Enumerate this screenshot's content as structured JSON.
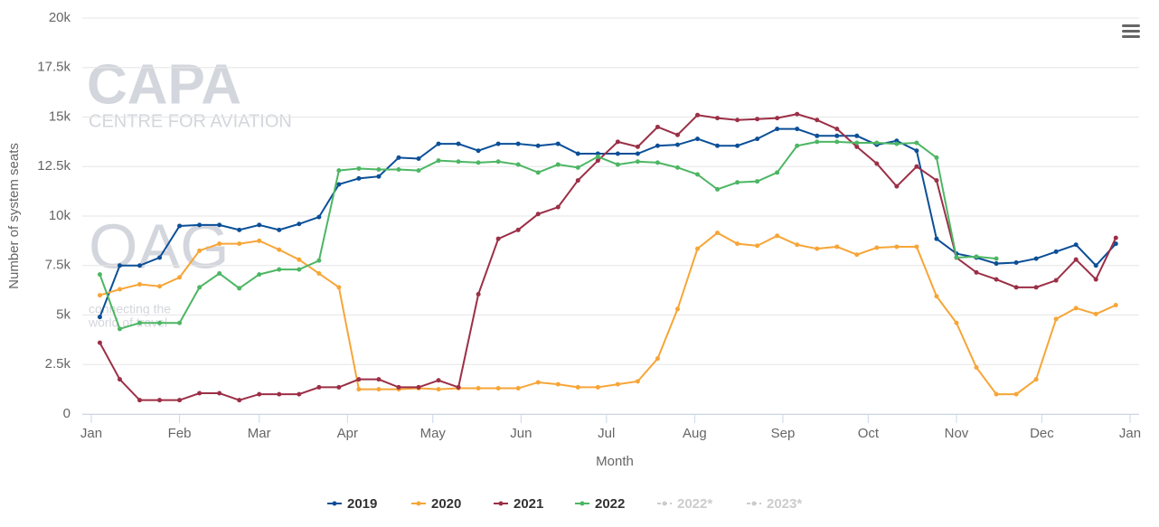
{
  "chart_data": {
    "type": "line",
    "x_label": "Month",
    "y_label": "Number of system seats",
    "watermarks": [
      "CAPA",
      "CENTRE FOR AVIATION",
      "OAG",
      "connecting the",
      "world of travel"
    ],
    "xlim": [
      0,
      365
    ],
    "xticks": [
      {
        "value": 0,
        "label": "Jan"
      },
      {
        "value": 31,
        "label": "Feb"
      },
      {
        "value": 59,
        "label": "Mar"
      },
      {
        "value": 90,
        "label": "Apr"
      },
      {
        "value": 120,
        "label": "May"
      },
      {
        "value": 151,
        "label": "Jun"
      },
      {
        "value": 181,
        "label": "Jul"
      },
      {
        "value": 212,
        "label": "Aug"
      },
      {
        "value": 243,
        "label": "Sep"
      },
      {
        "value": 273,
        "label": "Oct"
      },
      {
        "value": 304,
        "label": "Nov"
      },
      {
        "value": 334,
        "label": "Dec"
      },
      {
        "value": 365,
        "label": "Jan"
      }
    ],
    "ylim": [
      0,
      20000
    ],
    "yticks": [
      0,
      {
        "value": 2500,
        "label": "2.5k"
      },
      {
        "value": 5000,
        "label": "5k"
      },
      {
        "value": 7500,
        "label": "7.5k"
      },
      {
        "value": 10000,
        "label": "10k"
      },
      {
        "value": 12500,
        "label": "12.5k"
      },
      {
        "value": 15000,
        "label": "15k"
      },
      {
        "value": 17500,
        "label": "17.5k"
      },
      {
        "value": 20000,
        "label": "20k"
      }
    ],
    "grid": true,
    "x": [
      3,
      10,
      17,
      24,
      31,
      38,
      45,
      52,
      59,
      66,
      73,
      80,
      87,
      94,
      101,
      108,
      115,
      122,
      129,
      136,
      143,
      150,
      157,
      164,
      171,
      178,
      185,
      192,
      199,
      206,
      213,
      220,
      227,
      234,
      241,
      248,
      255,
      262,
      269,
      276,
      283,
      290,
      297,
      304,
      311,
      318,
      325,
      332,
      339,
      346,
      353,
      360
    ],
    "series": [
      {
        "name": "2019",
        "color": "#0b4f97",
        "values": [
          4900,
          7500,
          7500,
          7900,
          9500,
          9550,
          9550,
          9300,
          9550,
          9300,
          9600,
          9950,
          11600,
          11900,
          12000,
          12950,
          12900,
          13650,
          13650,
          13300,
          13650,
          13650,
          13550,
          13650,
          13150,
          13150,
          13150,
          13150,
          13550,
          13600,
          13900,
          13550,
          13550,
          13900,
          14400,
          14400,
          14050,
          14050,
          14050,
          13600,
          13800,
          13300,
          8850,
          8100,
          7900,
          7600,
          7650,
          7850,
          8200,
          8550,
          7500,
          8600
        ]
      },
      {
        "name": "2020",
        "color": "#f7a537",
        "values": [
          6000,
          6300,
          6550,
          6450,
          6900,
          8250,
          8600,
          8600,
          8750,
          8300,
          7800,
          7100,
          6400,
          1250,
          1250,
          1250,
          1300,
          1250,
          1300,
          1300,
          1300,
          1300,
          1600,
          1500,
          1350,
          1350,
          1500,
          1650,
          2800,
          5300,
          8350,
          9150,
          8600,
          8500,
          9000,
          8550,
          8350,
          8450,
          8050,
          8400,
          8450,
          8450,
          5950,
          4600,
          2350,
          1000,
          1000,
          1750,
          4800,
          5350,
          5050,
          5500
        ]
      },
      {
        "name": "2021",
        "color": "#9b2f46",
        "values": [
          3600,
          1750,
          700,
          700,
          700,
          1050,
          1050,
          700,
          1000,
          1000,
          1000,
          1350,
          1350,
          1750,
          1750,
          1350,
          1350,
          1700,
          1350,
          6050,
          8850,
          9300,
          10100,
          10450,
          11800,
          12800,
          13750,
          13500,
          14500,
          14100,
          15100,
          14950,
          14850,
          14900,
          14950,
          15150,
          14850,
          14400,
          13500,
          12650,
          11500,
          12500,
          11800,
          7900,
          7150,
          6800,
          6400,
          6400,
          6750,
          7800,
          6800,
          8900
        ]
      },
      {
        "name": "2022",
        "color": "#4db664",
        "values": [
          7050,
          4300,
          4600,
          4600,
          4600,
          6400,
          7100,
          6350,
          7050,
          7300,
          7300,
          7750,
          12300,
          12400,
          12350,
          12350,
          12300,
          12800,
          12750,
          12700,
          12750,
          12600,
          12200,
          12600,
          12450,
          13000,
          12600,
          12750,
          12700,
          12450,
          12100,
          11350,
          11700,
          11750,
          12200,
          13550,
          13750,
          13750,
          13700,
          13700,
          13650,
          13700,
          12950,
          7900,
          7950,
          7850,
          null,
          null,
          null,
          null,
          null,
          null
        ]
      }
    ],
    "legend_hidden": [
      "2022*",
      "2023*"
    ]
  }
}
